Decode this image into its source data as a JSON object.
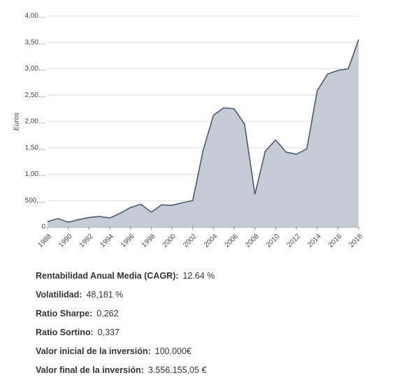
{
  "chart_data": {
    "type": "line",
    "ylabel": "Euros",
    "x": [
      1988,
      1989,
      1990,
      1991,
      1992,
      1993,
      1994,
      1995,
      1996,
      1997,
      1998,
      1999,
      2000,
      2001,
      2002,
      2003,
      2004,
      2005,
      2006,
      2007,
      2008,
      2009,
      2010,
      2011,
      2012,
      2013,
      2014,
      2015,
      2016,
      2017,
      2018
    ],
    "values": [
      100000,
      160000,
      90000,
      140000,
      180000,
      200000,
      170000,
      260000,
      370000,
      430000,
      280000,
      420000,
      410000,
      460000,
      500000,
      1450000,
      2120000,
      2260000,
      2240000,
      1950000,
      620000,
      1440000,
      1650000,
      1420000,
      1380000,
      1480000,
      2580000,
      2900000,
      2970000,
      3000000,
      3556155
    ],
    "color": "#4a5a70",
    "fill": "#c6ccd6",
    "xlim": [
      1988,
      2018
    ],
    "xticks": [
      1988,
      1990,
      1992,
      1994,
      1996,
      1998,
      2000,
      2002,
      2004,
      2006,
      2008,
      2010,
      2012,
      2014,
      2016,
      2018
    ],
    "ylim": [
      0,
      4000000
    ],
    "yticks": [
      0,
      {
        "value": 500000,
        "label": "500,…"
      },
      {
        "value": 1000000,
        "label": "1,00…"
      },
      {
        "value": 1500000,
        "label": "1,50…"
      },
      {
        "value": 2000000,
        "label": "2,00…"
      },
      {
        "value": 2500000,
        "label": "2,50…"
      },
      {
        "value": 3000000,
        "label": "3,00…"
      },
      {
        "value": 3500000,
        "label": "3,50…"
      },
      {
        "value": 4000000,
        "label": "4,00…"
      }
    ],
    "grid": true
  },
  "stats": [
    {
      "label": "Rentabilidad Anual Media (CAGR):",
      "value": "12.64 %"
    },
    {
      "label": "Volatilidad:",
      "value": "48,181 %"
    },
    {
      "label": "Ratio Sharpe:",
      "value": "0,262"
    },
    {
      "label": "Ratio Sortino:",
      "value": "0,337"
    },
    {
      "label": "Valor inicial de la inversión:",
      "value": "100.000€"
    },
    {
      "label": "Valor final de la inversión:",
      "value": "3.556.155,05 €"
    }
  ]
}
